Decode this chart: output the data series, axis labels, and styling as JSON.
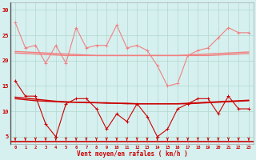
{
  "x": [
    0,
    1,
    2,
    3,
    4,
    5,
    6,
    7,
    8,
    9,
    10,
    11,
    12,
    13,
    14,
    15,
    16,
    17,
    18,
    19,
    20,
    21,
    22,
    23
  ],
  "rafales_line1": [
    27.5,
    22.5,
    23.0,
    19.5,
    23.0,
    19.5,
    26.5,
    22.5,
    23.0,
    23.0,
    27.0,
    22.5,
    23.0,
    22.0,
    19.0,
    15.0,
    15.5,
    21.0,
    22.0,
    22.5,
    24.5,
    26.5,
    25.5,
    25.5
  ],
  "rafales_trend1": [
    21.8,
    21.7,
    21.6,
    21.5,
    21.4,
    21.3,
    21.2,
    21.1,
    21.0,
    21.0,
    21.0,
    21.0,
    21.0,
    21.0,
    21.0,
    21.0,
    21.0,
    21.1,
    21.2,
    21.3,
    21.4,
    21.5,
    21.6,
    21.7
  ],
  "rafales_trend2": [
    21.5,
    21.4,
    21.3,
    21.2,
    21.1,
    21.0,
    21.0,
    21.0,
    21.0,
    21.0,
    21.0,
    21.0,
    21.0,
    21.0,
    21.0,
    21.0,
    21.0,
    21.0,
    21.0,
    21.0,
    21.1,
    21.2,
    21.3,
    21.4
  ],
  "vent_line1": [
    16.0,
    13.0,
    13.0,
    7.5,
    5.0,
    11.5,
    12.5,
    12.5,
    10.5,
    6.5,
    9.5,
    8.0,
    11.5,
    9.0,
    5.0,
    6.5,
    10.5,
    11.5,
    12.5,
    12.5,
    9.5,
    13.0,
    10.5,
    10.5
  ],
  "vent_trend1": [
    12.8,
    12.6,
    12.4,
    12.2,
    12.0,
    11.9,
    11.8,
    11.8,
    11.7,
    11.7,
    11.6,
    11.6,
    11.5,
    11.5,
    11.5,
    11.5,
    11.5,
    11.6,
    11.7,
    11.8,
    11.9,
    12.0,
    12.1,
    12.2
  ],
  "vent_trend2": [
    12.5,
    12.3,
    12.1,
    12.0,
    11.9,
    11.8,
    11.8,
    11.7,
    11.7,
    11.6,
    11.6,
    11.5,
    11.5,
    11.5,
    11.5,
    11.5,
    11.5,
    11.5,
    11.6,
    11.7,
    11.8,
    11.9,
    12.0,
    12.1
  ],
  "arrows_x": [
    0,
    1,
    2,
    3,
    4,
    5,
    6,
    7,
    8,
    9,
    10,
    11,
    12,
    13,
    14,
    15,
    16,
    17,
    18,
    19,
    20,
    21,
    22,
    23
  ],
  "xlabel": "Vent moyen/en rafales ( km/h )",
  "yticks": [
    5,
    10,
    15,
    20,
    25,
    30
  ],
  "xticks": [
    0,
    1,
    2,
    3,
    4,
    5,
    6,
    7,
    8,
    9,
    10,
    11,
    12,
    13,
    14,
    15,
    16,
    17,
    18,
    19,
    20,
    21,
    22,
    23
  ],
  "bg_color": "#d6f0f0",
  "grid_color": "#b0d8cc",
  "pink_color": "#f08080",
  "red_color": "#cc0000",
  "arrow_color": "#cc0000",
  "ylim": [
    3.5,
    31.5
  ],
  "xlim": [
    -0.5,
    23.5
  ]
}
